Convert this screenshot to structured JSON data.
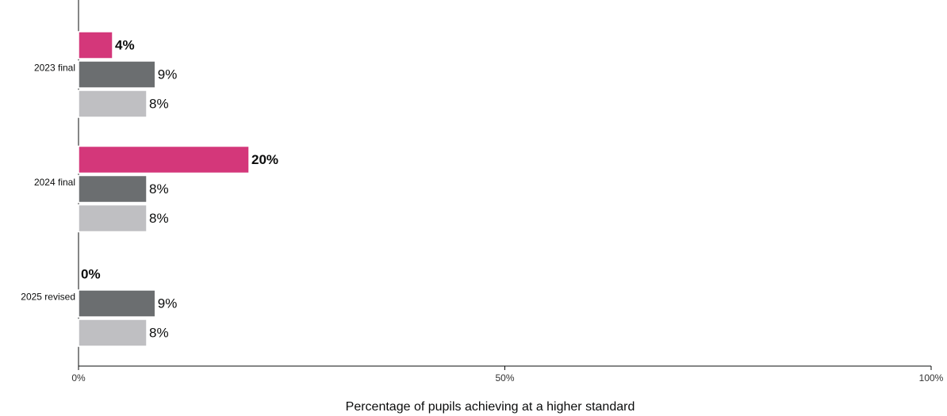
{
  "chart_data": {
    "type": "bar",
    "orientation": "horizontal",
    "x_label": "Percentage of pupils achieving at a higher standard",
    "categories": [
      "2023 final",
      "2024 final",
      "2025 revised"
    ],
    "series": [
      {
        "color": "#d4377a",
        "values": [
          4,
          20,
          0
        ],
        "value_labels": [
          "4%",
          "20%",
          "0%"
        ],
        "bold": true
      },
      {
        "color": "#6b6e70",
        "values": [
          9,
          8,
          9
        ],
        "value_labels": [
          "9%",
          "8%",
          "9%"
        ]
      },
      {
        "color": "#bfbfc2",
        "values": [
          8,
          8,
          8
        ],
        "value_labels": [
          "8%",
          "8%",
          "8%"
        ]
      }
    ],
    "xlim": [
      0,
      100
    ],
    "xticks": [
      {
        "value": 0,
        "label": "0%"
      },
      {
        "value": 50,
        "label": "50%"
      },
      {
        "value": 100,
        "label": "100%"
      }
    ]
  }
}
